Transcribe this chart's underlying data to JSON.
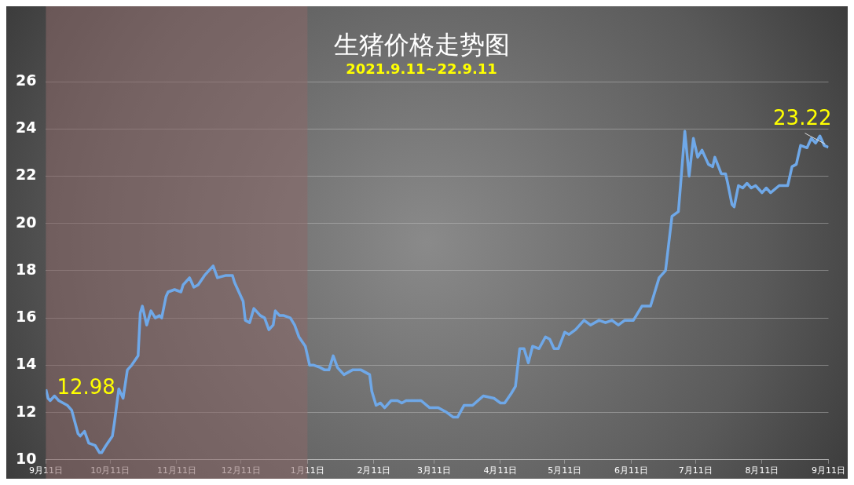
{
  "chart_data": {
    "type": "line",
    "title": "生猪价格走势图",
    "subtitle": "2021.9.11~22.9.11",
    "x": [
      "2021-09-11",
      "2021-09-12",
      "2021-09-13",
      "2021-09-15",
      "2021-09-17",
      "2021-09-19",
      "2021-09-21",
      "2021-09-23",
      "2021-09-26",
      "2021-09-27",
      "2021-09-29",
      "2021-10-01",
      "2021-10-04",
      "2021-10-06",
      "2021-10-07",
      "2021-10-09",
      "2021-10-12",
      "2021-10-13",
      "2021-10-15",
      "2021-10-17",
      "2021-10-19",
      "2021-10-21",
      "2021-10-24",
      "2021-10-25",
      "2021-10-26",
      "2021-10-28",
      "2021-10-30",
      "2021-11-01",
      "2021-11-03",
      "2021-11-04",
      "2021-11-06",
      "2021-11-07",
      "2021-11-10",
      "2021-11-13",
      "2021-11-14",
      "2021-11-17",
      "2021-11-19",
      "2021-11-21",
      "2021-11-24",
      "2021-11-26",
      "2021-11-28",
      "2021-11-30",
      "2021-12-04",
      "2021-12-07",
      "2021-12-08",
      "2021-12-12",
      "2021-12-13",
      "2021-12-15",
      "2021-12-17",
      "2021-12-20",
      "2021-12-22",
      "2021-12-24",
      "2021-12-26",
      "2021-12-27",
      "2021-12-29",
      "2021-12-31",
      "2022-01-03",
      "2022-01-05",
      "2022-01-07",
      "2022-01-10",
      "2022-01-12",
      "2022-01-14",
      "2022-01-17",
      "2022-01-19",
      "2022-01-21",
      "2022-01-23",
      "2022-01-25",
      "2022-01-28",
      "2022-02-01",
      "2022-02-05",
      "2022-02-07",
      "2022-02-09",
      "2022-02-10",
      "2022-02-12",
      "2022-02-14",
      "2022-02-16",
      "2022-02-19",
      "2022-02-22",
      "2022-02-24",
      "2022-02-26",
      "2022-03-01",
      "2022-03-05",
      "2022-03-09",
      "2022-03-13",
      "2022-03-17",
      "2022-03-20",
      "2022-03-22",
      "2022-03-25",
      "2022-03-29",
      "2022-04-03",
      "2022-04-08",
      "2022-04-11",
      "2022-04-13",
      "2022-04-16",
      "2022-04-18",
      "2022-04-20",
      "2022-04-22",
      "2022-04-24",
      "2022-04-26",
      "2022-04-29",
      "2022-05-02",
      "2022-05-04",
      "2022-05-06",
      "2022-05-08",
      "2022-05-11",
      "2022-05-13",
      "2022-05-16",
      "2022-05-20",
      "2022-05-23",
      "2022-05-27",
      "2022-05-30",
      "2022-06-02",
      "2022-06-05",
      "2022-06-08",
      "2022-06-12",
      "2022-06-16",
      "2022-06-20",
      "2022-06-24",
      "2022-06-27",
      "2022-06-30",
      "2022-07-03",
      "2022-07-04",
      "2022-07-06",
      "2022-07-08",
      "2022-07-10",
      "2022-07-12",
      "2022-07-14",
      "2022-07-17",
      "2022-07-19",
      "2022-07-20",
      "2022-07-23",
      "2022-07-25",
      "2022-07-26",
      "2022-07-28",
      "2022-07-29",
      "2022-07-31",
      "2022-08-02",
      "2022-08-04",
      "2022-08-06",
      "2022-08-08",
      "2022-08-11",
      "2022-08-13",
      "2022-08-15",
      "2022-08-19",
      "2022-08-23",
      "2022-08-25",
      "2022-08-27",
      "2022-08-29",
      "2022-09-01",
      "2022-09-03",
      "2022-09-05",
      "2022-09-07",
      "2022-09-09",
      "2022-09-11"
    ],
    "series": [
      {
        "color": "#6fa8e8",
        "values": [
          12.98,
          12.6,
          12.5,
          12.7,
          12.5,
          12.4,
          12.3,
          12.1,
          11.1,
          11.0,
          11.2,
          10.7,
          10.6,
          10.3,
          10.3,
          10.6,
          11.0,
          11.6,
          13.0,
          12.6,
          13.8,
          14.0,
          14.4,
          16.2,
          16.5,
          15.7,
          16.3,
          16.0,
          16.1,
          16.0,
          16.9,
          17.1,
          17.2,
          17.1,
          17.4,
          17.7,
          17.3,
          17.4,
          17.8,
          18.0,
          18.2,
          17.7,
          17.8,
          17.8,
          17.5,
          16.7,
          15.9,
          15.8,
          16.4,
          16.1,
          16.0,
          15.5,
          15.7,
          16.3,
          16.1,
          16.1,
          16.0,
          15.7,
          15.2,
          14.8,
          14.0,
          14.0,
          13.9,
          13.8,
          13.8,
          14.4,
          13.9,
          13.6,
          13.8,
          13.8,
          13.7,
          13.6,
          12.9,
          12.3,
          12.4,
          12.2,
          12.5,
          12.5,
          12.4,
          12.5,
          12.5,
          12.5,
          12.2,
          12.2,
          12.0,
          11.8,
          11.8,
          12.3,
          12.3,
          12.7,
          12.6,
          12.4,
          12.4,
          12.8,
          13.1,
          14.7,
          14.7,
          14.1,
          14.8,
          14.7,
          15.2,
          15.1,
          14.7,
          14.7,
          15.4,
          15.3,
          15.5,
          15.9,
          15.7,
          15.9,
          15.8,
          15.9,
          15.7,
          15.9,
          15.9,
          16.5,
          16.5,
          17.7,
          18.0,
          20.3,
          20.5,
          21.6,
          23.9,
          22.0,
          23.6,
          22.8,
          23.1,
          22.5,
          22.4,
          22.8,
          22.1,
          22.1,
          21.7,
          20.8,
          20.7,
          21.6,
          21.5,
          21.7,
          21.5,
          21.6,
          21.3,
          21.5,
          21.3,
          21.6,
          21.6,
          22.4,
          22.5,
          23.3,
          23.2,
          23.6,
          23.4,
          23.7,
          23.3,
          23.22
        ]
      }
    ],
    "xlim": [
      "2021-09-11",
      "2022-09-11"
    ],
    "xticks": [
      {
        "value": "2021-09-11",
        "label": "9月11日"
      },
      {
        "value": "2021-10-11",
        "label": "10月11日"
      },
      {
        "value": "2021-11-11",
        "label": "11月11日"
      },
      {
        "value": "2021-12-11",
        "label": "12月11日"
      },
      {
        "value": "2022-01-11",
        "label": "1月11日"
      },
      {
        "value": "2022-02-11",
        "label": "2月11日"
      },
      {
        "value": "2022-03-11",
        "label": "3月11日"
      },
      {
        "value": "2022-04-11",
        "label": "4月11日"
      },
      {
        "value": "2022-05-11",
        "label": "5月11日"
      },
      {
        "value": "2022-06-11",
        "label": "6月11日"
      },
      {
        "value": "2022-07-11",
        "label": "7月11日"
      },
      {
        "value": "2022-08-11",
        "label": "8月11日"
      },
      {
        "value": "2022-09-11",
        "label": "9月11日"
      }
    ],
    "ylim": [
      10,
      26
    ],
    "yticks": [
      10,
      12,
      14,
      16,
      18,
      20,
      22,
      24,
      26
    ],
    "bands": [
      {
        "axis": "x",
        "from": "2021-09-11",
        "to": "2022-01-11",
        "color": "#8a6868"
      }
    ],
    "annotations": [
      {
        "text": "12.98",
        "x": "2021-09-11",
        "y": 12.98
      },
      {
        "text": "23.22",
        "x": "2022-09-11",
        "y": 23.22
      }
    ],
    "grid": "y",
    "legend": false,
    "marker": "none",
    "line_style": "solid"
  }
}
